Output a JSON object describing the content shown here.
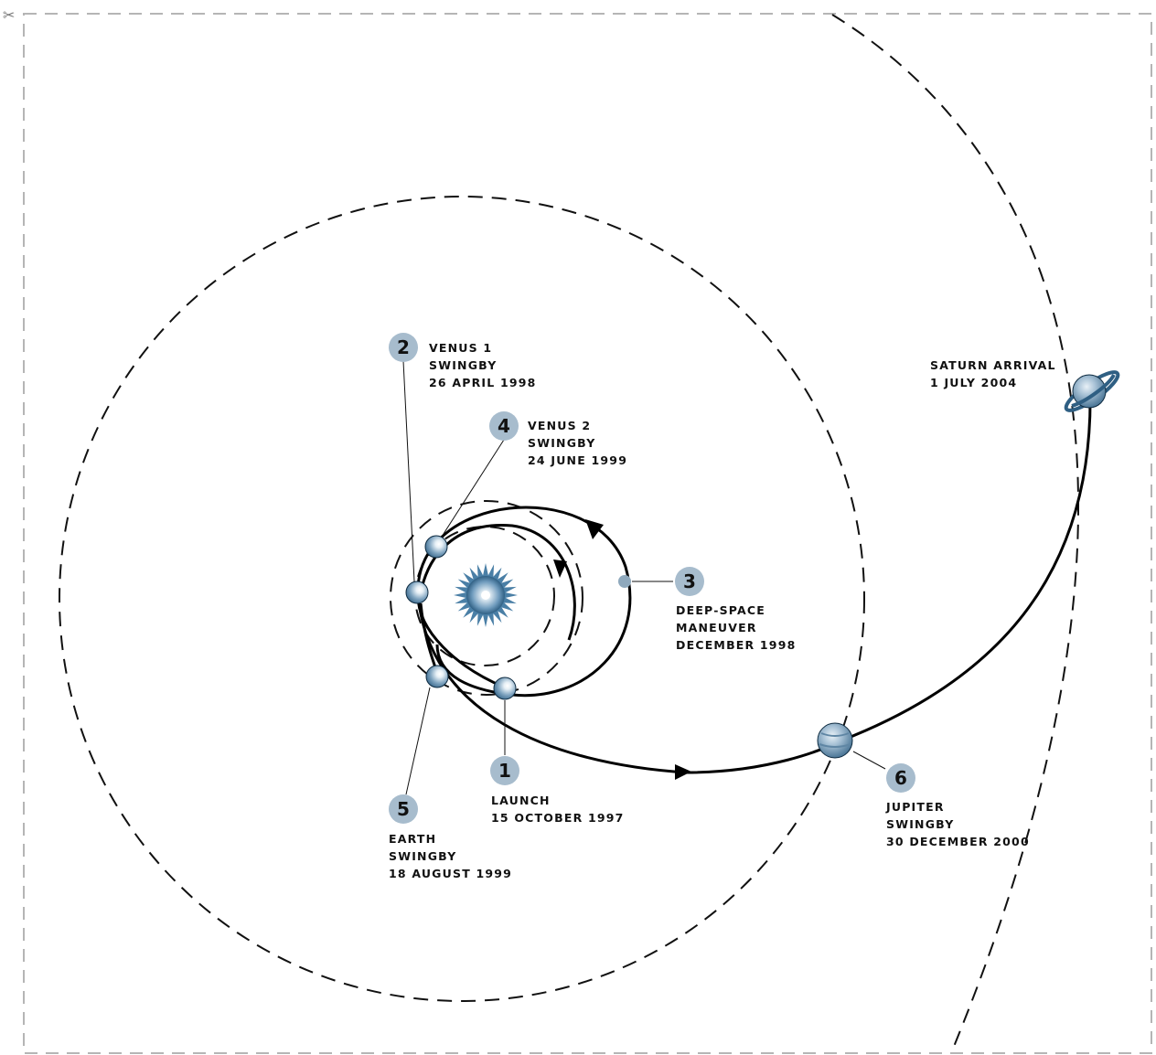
{
  "colors": {
    "background": "#ffffff",
    "frame": "#b5b5b5",
    "line": "#111111",
    "badge": "#a7bccd",
    "planet_dark": "#2f5f83",
    "planet_light": "#ffffff",
    "sun": "#4a7fa6"
  },
  "icons": {
    "scissors": "✂",
    "sun": "sun-icon",
    "planet": "planet-icon",
    "saturn": "saturn-icon",
    "spacecraft": "spacecraft-dot-icon"
  },
  "events": [
    {
      "number": "1",
      "lines": [
        "LAUNCH",
        "15 OCTOBER 1997"
      ]
    },
    {
      "number": "2",
      "lines": [
        "VENUS 1",
        "SWINGBY",
        "26 APRIL 1998"
      ]
    },
    {
      "number": "3",
      "lines": [
        "DEEP-SPACE",
        "MANEUVER",
        "DECEMBER 1998"
      ]
    },
    {
      "number": "4",
      "lines": [
        "VENUS 2",
        "SWINGBY",
        "24 JUNE 1999"
      ]
    },
    {
      "number": "5",
      "lines": [
        "EARTH",
        "SWINGBY",
        "18 AUGUST 1999"
      ]
    },
    {
      "number": "6",
      "lines": [
        "JUPITER",
        "SWINGBY",
        "30 DECEMBER 2000"
      ]
    }
  ],
  "saturn": {
    "lines": [
      "SATURN ARRIVAL",
      "1 JULY 2004"
    ]
  }
}
